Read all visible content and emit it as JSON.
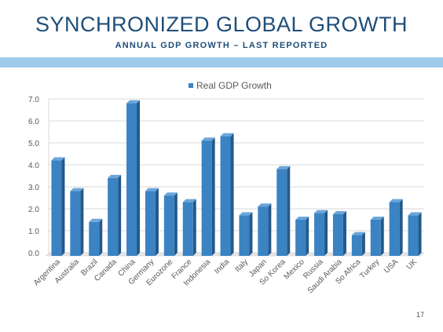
{
  "slide": {
    "title": "SYNCHRONIZED GLOBAL GROWTH",
    "subtitle": "ANNUAL GDP GROWTH – LAST REPORTED",
    "page_number": "17"
  },
  "colors": {
    "bar_front": "#3b83c2",
    "bar_side": "#24598a",
    "bar_top": "#6aa6dc",
    "accent_band": "#9ecbea",
    "title": "#1f4e79"
  },
  "chart_data": {
    "type": "bar",
    "categories": [
      "Argentina",
      "Australia",
      "Brazil",
      "Canada",
      "China",
      "Germany",
      "Eurozone",
      "France",
      "Indonesia",
      "India",
      "Italy",
      "Japan",
      "So Korea",
      "Mexico",
      "Russia",
      "Saudi Arabia",
      "So Africa",
      "Turkey",
      "USA",
      "UK"
    ],
    "series": [
      {
        "name": "Real GDP Growth",
        "values": [
          4.2,
          2.8,
          1.4,
          3.4,
          6.8,
          2.8,
          2.6,
          2.3,
          5.1,
          5.3,
          1.7,
          2.1,
          3.8,
          1.5,
          1.8,
          1.75,
          0.8,
          1.5,
          2.3,
          1.7
        ]
      }
    ],
    "y_ticks": [
      "0.0",
      "1.0",
      "2.0",
      "3.0",
      "4.0",
      "5.0",
      "6.0",
      "7.0"
    ],
    "ylim": [
      0,
      7
    ],
    "grid": true,
    "legend_position": "top",
    "bar_style": "3d"
  }
}
